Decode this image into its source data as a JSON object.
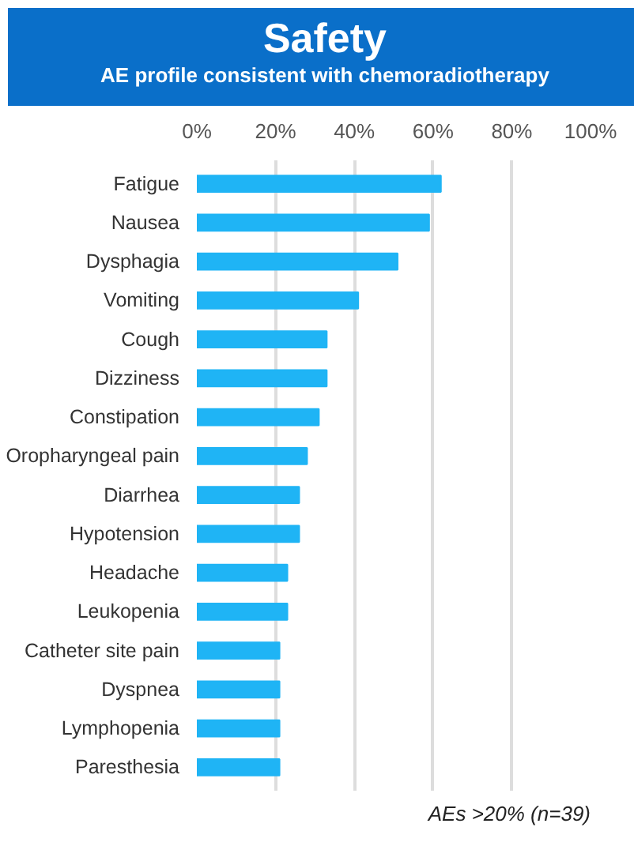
{
  "chart_data": {
    "type": "bar",
    "orientation": "horizontal",
    "title": "Safety",
    "subtitle": "AE profile consistent with chemoradiotherapy",
    "categories": [
      "Fatigue",
      "Nausea",
      "Dysphagia",
      "Vomiting",
      "Cough",
      "Dizziness",
      "Constipation",
      "Oropharyngeal pain",
      "Diarrhea",
      "Hypotension",
      "Headache",
      "Leukopenia",
      "Catheter site pain",
      "Dyspnea",
      "Lymphopenia",
      "Paresthesia"
    ],
    "values": [
      62,
      59,
      51,
      41,
      33,
      33,
      31,
      28,
      26,
      26,
      23,
      23,
      21,
      21,
      21,
      21
    ],
    "color": "#1fb4f5",
    "xlim": [
      0,
      100
    ],
    "xticks": [
      {
        "value": 0,
        "label": "0%"
      },
      {
        "value": 20,
        "label": "20%"
      },
      {
        "value": 40,
        "label": "40%"
      },
      {
        "value": 60,
        "label": "60%"
      },
      {
        "value": 80,
        "label": "80%"
      },
      {
        "value": 100,
        "label": "100%"
      }
    ],
    "grid": "x",
    "annotations": [
      "AEs >20% (n=39)"
    ]
  }
}
